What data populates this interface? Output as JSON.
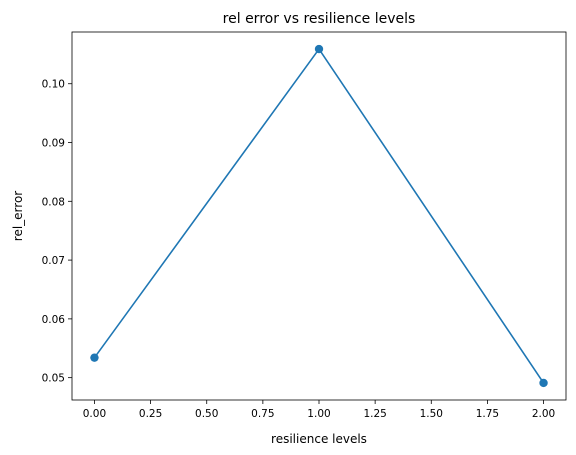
{
  "chart_data": {
    "type": "line",
    "title": "rel error vs resilience levels",
    "xlabel": "resilience levels",
    "ylabel": "rel_error",
    "x": [
      0,
      1,
      2
    ],
    "series": [
      {
        "values": [
          0.0534,
          0.1059,
          0.0491
        ]
      }
    ],
    "xlim": [
      -0.1,
      2.1
    ],
    "ylim": [
      0.0462,
      0.1088
    ],
    "xticks": [
      "0.00",
      "0.25",
      "0.50",
      "0.75",
      "1.00",
      "1.25",
      "1.50",
      "1.75",
      "2.00"
    ],
    "yticks": [
      "0.05",
      "0.06",
      "0.07",
      "0.08",
      "0.09",
      "0.10"
    ],
    "line_color": "#1f77b4",
    "marker": "circle",
    "grid": false
  }
}
